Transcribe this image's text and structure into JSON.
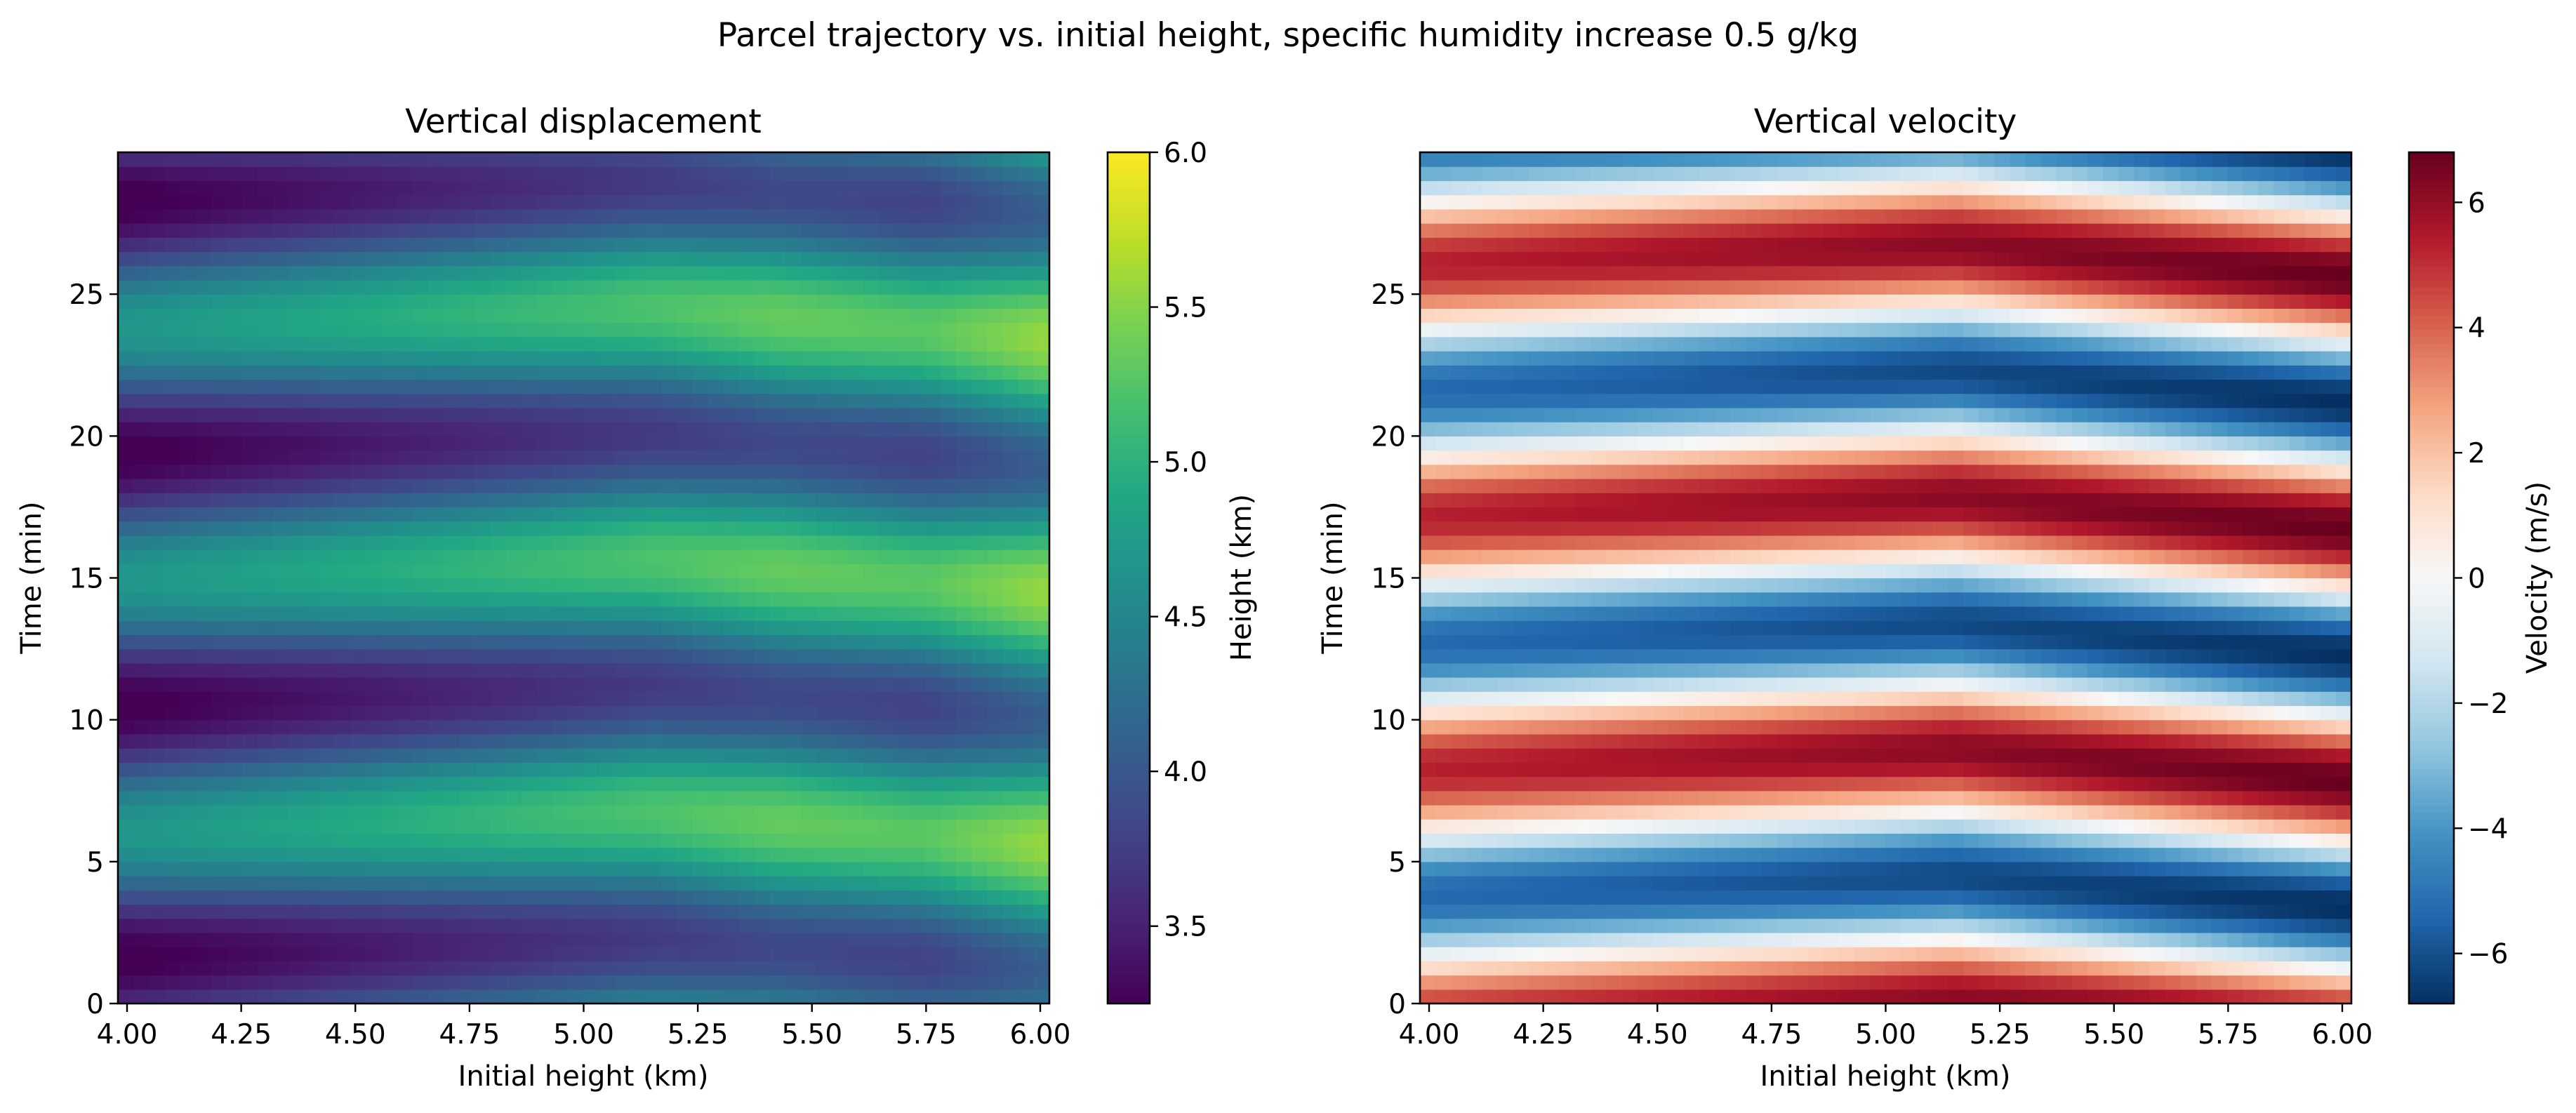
{
  "figure": {
    "suptitle": "Parcel trajectory vs. initial height, specific humidity increase 0.5 g/kg"
  },
  "chart_data": [
    {
      "type": "heatmap",
      "title": "Vertical displacement",
      "xlabel": "Initial height (km)",
      "ylabel": "Time (min)",
      "x_range": [
        3.98,
        6.02
      ],
      "y_range": [
        0,
        30
      ],
      "x_ticks": [
        4.0,
        4.25,
        4.5,
        4.75,
        5.0,
        5.25,
        5.5,
        5.75,
        6.0
      ],
      "x_tick_labels": [
        "4.00",
        "4.25",
        "4.50",
        "4.75",
        "5.00",
        "5.25",
        "5.50",
        "5.75",
        "6.00"
      ],
      "y_ticks": [
        0,
        5,
        10,
        15,
        20,
        25
      ],
      "y_tick_labels": [
        "0",
        "5",
        "10",
        "15",
        "20",
        "25"
      ],
      "colormap": "viridis",
      "colorbar": {
        "label": "Height (km)",
        "min": 3.25,
        "max": 6.0,
        "ticks": [
          3.5,
          4.0,
          4.5,
          5.0,
          5.5,
          6.0
        ],
        "tick_labels": [
          "3.5",
          "4.0",
          "4.5",
          "5.0",
          "5.5",
          "6.0"
        ]
      },
      "field": {
        "description": "parcel height z(h0, t) sampled on a 60 x 60 grid",
        "nx": 60,
        "ny": 60,
        "kink_height": 5.15,
        "notch_height": 5.75,
        "notch_depth": 0.2,
        "oscillation_amplitude": 0.75,
        "period_min": 8.9,
        "period_slope_below": 0.6,
        "period_slope_above": -1.3,
        "phase_offset_min": 1.6
      }
    },
    {
      "type": "heatmap",
      "title": "Vertical velocity",
      "xlabel": "Initial height (km)",
      "ylabel": "Time (min)",
      "x_range": [
        3.98,
        6.02
      ],
      "y_range": [
        0,
        30
      ],
      "x_ticks": [
        4.0,
        4.25,
        4.5,
        4.75,
        5.0,
        5.25,
        5.5,
        5.75,
        6.0
      ],
      "x_tick_labels": [
        "4.00",
        "4.25",
        "4.50",
        "4.75",
        "5.00",
        "5.25",
        "5.50",
        "5.75",
        "6.00"
      ],
      "y_ticks": [
        0,
        5,
        10,
        15,
        20,
        25
      ],
      "y_tick_labels": [
        "0",
        "5",
        "10",
        "15",
        "20",
        "25"
      ],
      "colormap": "RdBu_r",
      "colorbar": {
        "label": "Velocity (m/s)",
        "min": -6.8,
        "max": 6.8,
        "ticks": [
          -6,
          -4,
          -2,
          0,
          2,
          4,
          6
        ],
        "tick_labels": [
          "−6",
          "−4",
          "−2",
          "0",
          "2",
          "4",
          "6"
        ]
      },
      "field": {
        "description": "vertical velocity w(h0, t) sampled on a 60 x 60 grid",
        "nx": 60,
        "ny": 60,
        "amplitude_min": 5.3,
        "amplitude_max": 6.8
      }
    }
  ]
}
